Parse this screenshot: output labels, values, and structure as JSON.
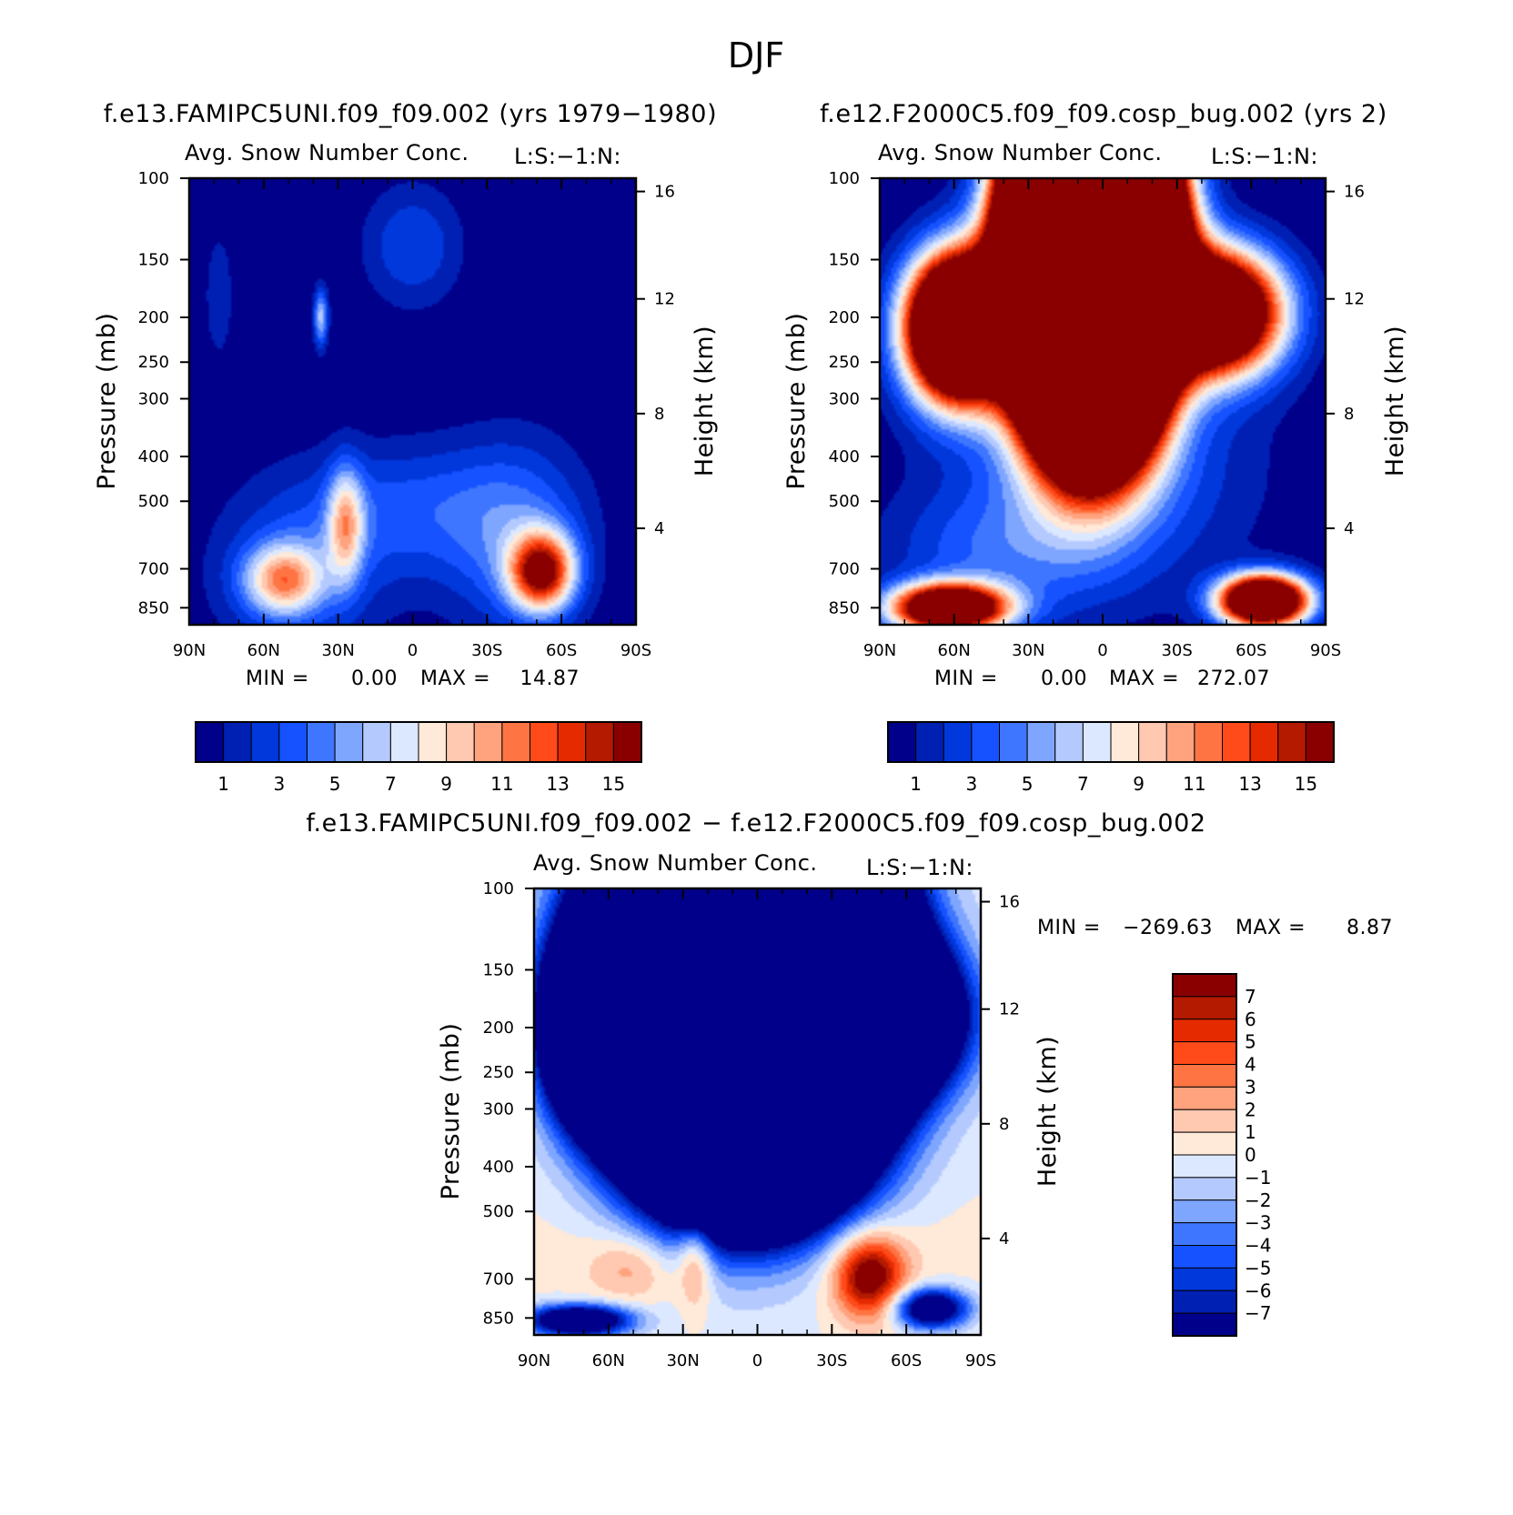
{
  "chart_data": {
    "type": "heatmap",
    "title": "DJF",
    "panels": [
      {
        "id": "model",
        "title": "f.e13.FAMIPC5UNI.f09_f09.002 (yrs 1979−1980)",
        "subtitle": "Avg. Snow Number Conc.",
        "units": "L:S:−1:N:",
        "xlabel": "",
        "ylabel": "Pressure (mb)",
        "y2label": "Height (km)",
        "xticks": [
          "90N",
          "60N",
          "30N",
          "0",
          "30S",
          "60S",
          "90S"
        ],
        "yticks": [
          "100",
          "150",
          "200",
          "250",
          "300",
          "400",
          "500",
          "700",
          "850"
        ],
        "y2ticks": [
          "16",
          "12",
          "8",
          "4"
        ],
        "min_label": "MIN =",
        "min_value": "0.00",
        "max_label": "MAX =",
        "max_value": "14.87",
        "colorbar": {
          "orientation": "horizontal",
          "labels": [
            "1",
            "3",
            "5",
            "7",
            "9",
            "11",
            "13",
            "15"
          ]
        },
        "blobs": [
          {
            "lat": 52,
            "p": 740,
            "lat_sigma": 11,
            "p_sigma": 90,
            "value": 9.0
          },
          {
            "lat": 27,
            "p": 560,
            "lat_sigma": 5,
            "p_sigma": 110,
            "value": 7.5
          },
          {
            "lat": 45,
            "p": 700,
            "lat_sigma": 25,
            "p_sigma": 220,
            "value": 3.0
          },
          {
            "lat": -52,
            "p": 710,
            "lat_sigma": 9,
            "p_sigma": 95,
            "value": 14.8
          },
          {
            "lat": -42,
            "p": 600,
            "lat_sigma": 20,
            "p_sigma": 200,
            "value": 4.0
          },
          {
            "lat": 0,
            "p": 520,
            "lat_sigma": 30,
            "p_sigma": 120,
            "value": 3.0
          },
          {
            "lat": 0,
            "p": 140,
            "lat_sigma": 14,
            "p_sigma": 30,
            "value": 3.0
          },
          {
            "lat": 78,
            "p": 180,
            "lat_sigma": 4,
            "p_sigma": 40,
            "value": 2.0
          },
          {
            "lat": 37,
            "p": 200,
            "lat_sigma": 2,
            "p_sigma": 20,
            "value": 6.5
          }
        ]
      },
      {
        "id": "control",
        "title": "f.e12.F2000C5.f09_f09.cosp_bug.002 (yrs 2)",
        "subtitle": "Avg. Snow Number Conc.",
        "units": "L:S:−1:N:",
        "xlabel": "",
        "ylabel": "Pressure (mb)",
        "y2label": "Height (km)",
        "xticks": [
          "90N",
          "60N",
          "30N",
          "0",
          "30S",
          "60S",
          "90S"
        ],
        "yticks": [
          "100",
          "150",
          "200",
          "250",
          "300",
          "400",
          "500",
          "700",
          "850"
        ],
        "y2ticks": [
          "16",
          "12",
          "8",
          "4"
        ],
        "min_label": "MIN =",
        "min_value": "0.00",
        "max_label": "MAX =",
        "max_value": "272.07",
        "colorbar": {
          "orientation": "horizontal",
          "labels": [
            "1",
            "3",
            "5",
            "7",
            "9",
            "11",
            "13",
            "15"
          ]
        },
        "blobs": [
          {
            "lat": 5,
            "p": 150,
            "lat_sigma": 17,
            "p_sigma": 70,
            "value": 272
          },
          {
            "lat": 58,
            "p": 210,
            "lat_sigma": 14,
            "p_sigma": 50,
            "value": 40
          },
          {
            "lat": -45,
            "p": 195,
            "lat_sigma": 18,
            "p_sigma": 40,
            "value": 30
          },
          {
            "lat": 62,
            "p": 850,
            "lat_sigma": 16,
            "p_sigma": 70,
            "value": 25
          },
          {
            "lat": -65,
            "p": 820,
            "lat_sigma": 12,
            "p_sigma": 70,
            "value": 30
          },
          {
            "lat": 0,
            "p": 420,
            "lat_sigma": 40,
            "p_sigma": 180,
            "value": 4.0
          },
          {
            "lat": 45,
            "p": 650,
            "lat_sigma": 30,
            "p_sigma": 150,
            "value": 3.0
          }
        ]
      },
      {
        "id": "difference",
        "title": "f.e13.FAMIPC5UNI.f09_f09.002 − f.e12.F2000C5.f09_f09.cosp_bug.002",
        "subtitle": "Avg. Snow Number Conc.",
        "units": "L:S:−1:N:",
        "xlabel": "",
        "ylabel": "Pressure (mb)",
        "y2label": "Height (km)",
        "xticks": [
          "90N",
          "60N",
          "30N",
          "0",
          "30S",
          "60S",
          "90S"
        ],
        "yticks": [
          "100",
          "150",
          "200",
          "250",
          "300",
          "400",
          "500",
          "700",
          "850"
        ],
        "y2ticks": [
          "16",
          "12",
          "8",
          "4"
        ],
        "min_label": "MIN =",
        "min_value": "−269.63",
        "max_label": "MAX =",
        "max_value": "8.87",
        "colorbar": {
          "orientation": "vertical",
          "labels": [
            "7",
            "6",
            "5",
            "4",
            "3",
            "2",
            "1",
            "0",
            "−1",
            "−2",
            "−3",
            "−4",
            "−5",
            "−6",
            "−7"
          ]
        },
        "blobs": [
          {
            "lat": 5,
            "p": 160,
            "lat_sigma": 28,
            "p_sigma": 80,
            "value": -272
          },
          {
            "lat": 62,
            "p": 200,
            "lat_sigma": 14,
            "p_sigma": 55,
            "value": -35
          },
          {
            "lat": -45,
            "p": 190,
            "lat_sigma": 22,
            "p_sigma": 45,
            "value": -30
          },
          {
            "lat": 72,
            "p": 860,
            "lat_sigma": 14,
            "p_sigma": 45,
            "value": -14
          },
          {
            "lat": -70,
            "p": 810,
            "lat_sigma": 10,
            "p_sigma": 55,
            "value": -12
          },
          {
            "lat": 0,
            "p": 400,
            "lat_sigma": 35,
            "p_sigma": 110,
            "value": -2.5
          },
          {
            "lat": -45,
            "p": 690,
            "lat_sigma": 10,
            "p_sigma": 100,
            "value": 8.8
          },
          {
            "lat": 25,
            "p": 620,
            "lat_sigma": 5,
            "p_sigma": 110,
            "value": 4.5
          },
          {
            "lat": 50,
            "p": 660,
            "lat_sigma": 12,
            "p_sigma": 80,
            "value": 2.6
          },
          {
            "lat": 0,
            "p": 600,
            "lat_sigma": 60,
            "p_sigma": 130,
            "value": 1.2
          }
        ]
      }
    ],
    "xlim": [
      "90N",
      "90S"
    ],
    "ylim_mb": [
      100,
      925
    ],
    "palette": [
      "#00008a",
      "#0020b4",
      "#0038dc",
      "#1652ff",
      "#3f76ff",
      "#7fa6ff",
      "#b4caff",
      "#dce8ff",
      "#ffe9d8",
      "#ffc8b0",
      "#ffa27e",
      "#ff7443",
      "#ff4a1a",
      "#e62a00",
      "#b41a00",
      "#8a0000"
    ]
  }
}
